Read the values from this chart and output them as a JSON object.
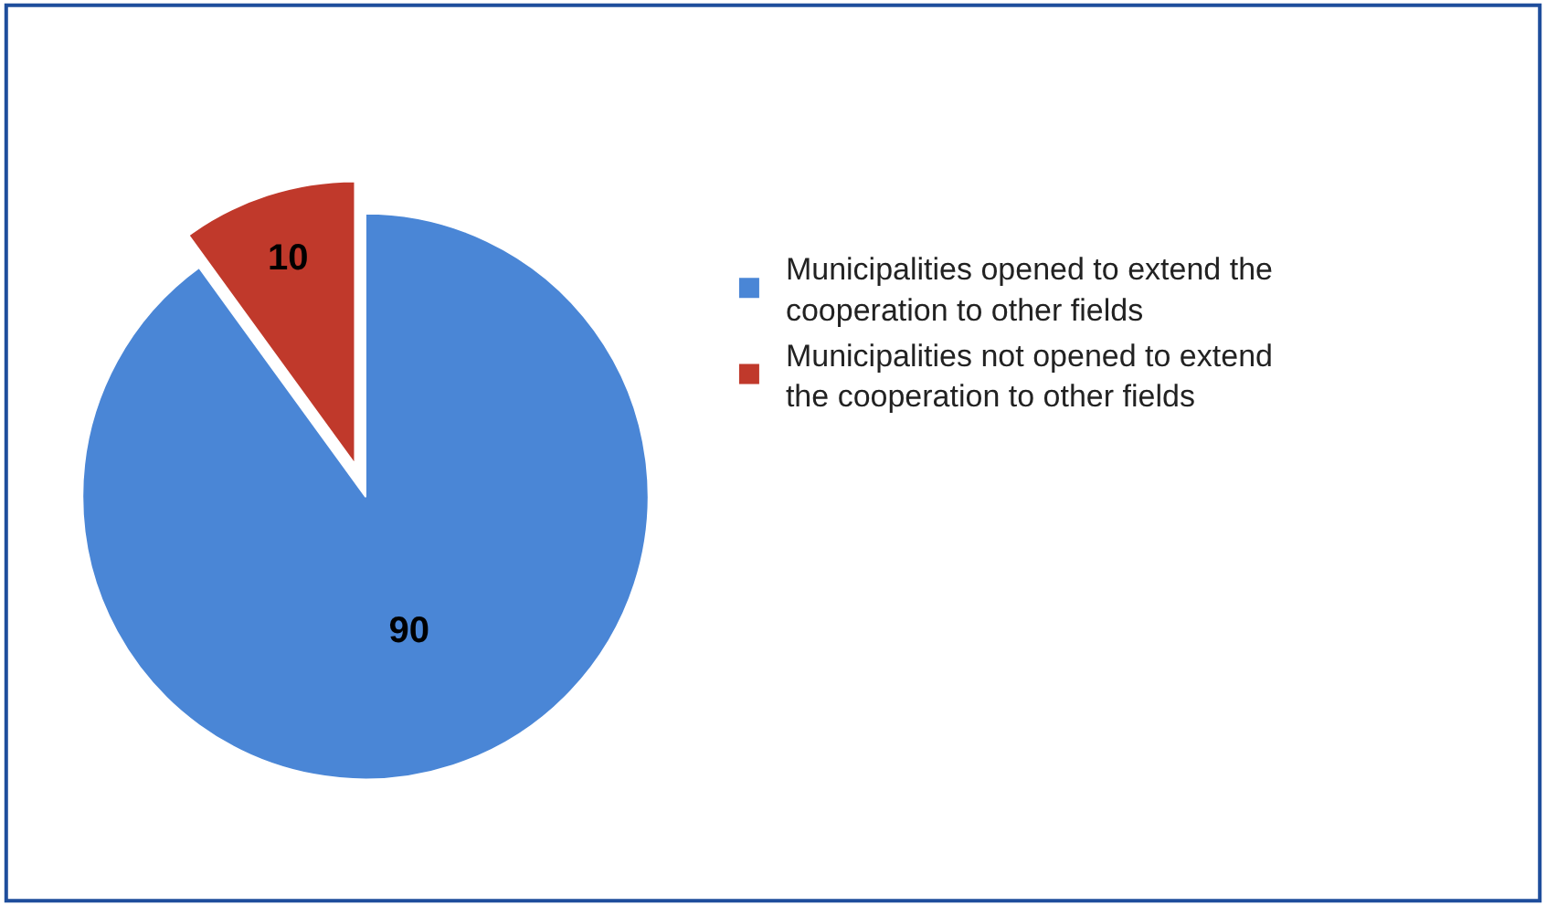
{
  "chart_data": {
    "type": "pie",
    "categories": [
      "Municipalities opened to extend the cooperation to other fields",
      "Municipalities not opened to extend the cooperation to other fields"
    ],
    "values": [
      90,
      10
    ],
    "colors": [
      "#4a86d6",
      "#c0392b"
    ],
    "data_labels": true,
    "legend": "right"
  }
}
